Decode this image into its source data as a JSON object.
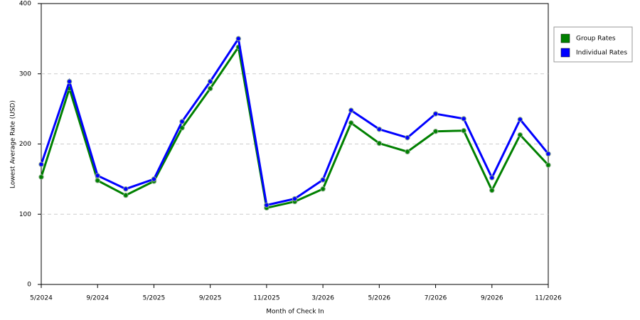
{
  "chart_data": {
    "type": "line",
    "x_label": "Month of Check In",
    "y_label": "Lowest Average Rate (USD)",
    "categories": [
      "5/2024",
      null,
      "9/2024",
      null,
      "5/2025",
      null,
      "9/2025",
      null,
      "11/2025",
      null,
      "3/2026",
      null,
      "5/2026",
      null,
      "7/2026",
      null,
      "9/2026",
      null,
      "11/2026"
    ],
    "series": [
      {
        "name": "Group Rates",
        "color": "#008000",
        "values": [
          153,
          279,
          148,
          127,
          147,
          223,
          279,
          338,
          109,
          118,
          136,
          230,
          201,
          189,
          218,
          219,
          134,
          213,
          170
        ]
      },
      {
        "name": "Individual Rates",
        "color": "#0000ff",
        "values": [
          171,
          289,
          155,
          136,
          150,
          232,
          289,
          350,
          113,
          122,
          149,
          248,
          221,
          209,
          243,
          236,
          152,
          235,
          186
        ]
      }
    ],
    "ylim": [
      0,
      400
    ],
    "yticks": [
      0,
      100,
      200,
      300,
      400
    ],
    "grid": true,
    "legend": "right"
  }
}
